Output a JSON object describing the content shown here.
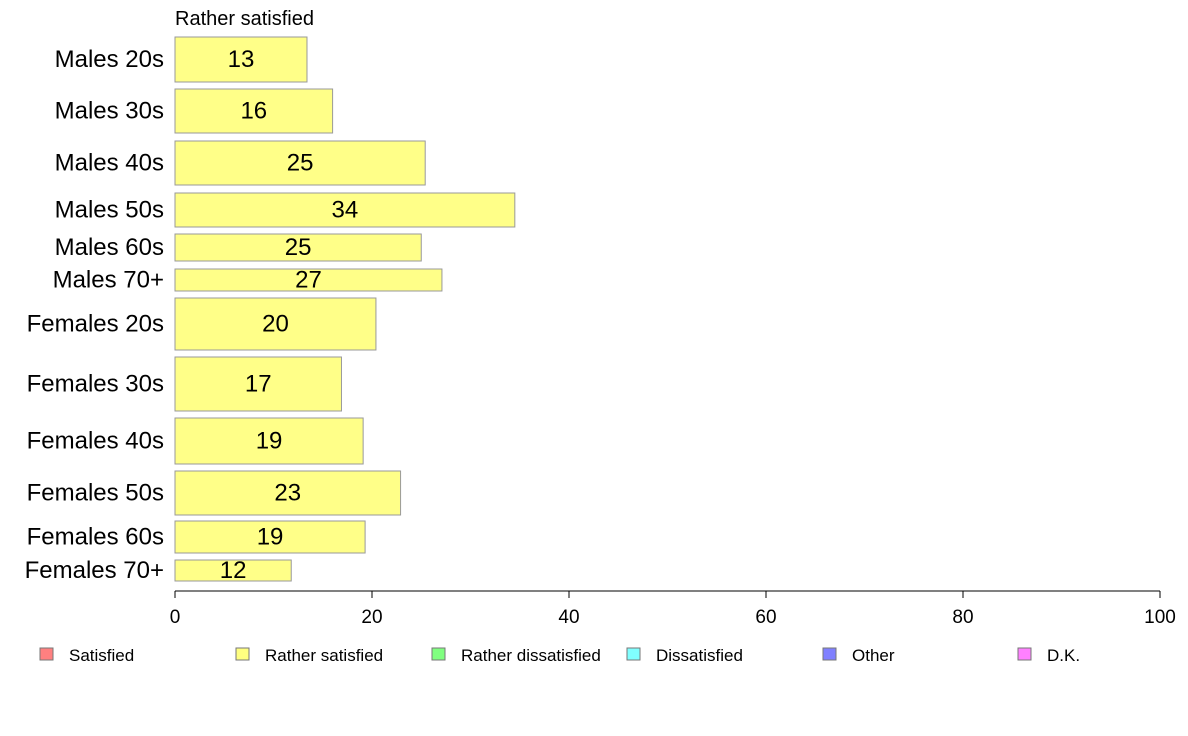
{
  "chart_data": {
    "type": "bar",
    "orientation": "horizontal",
    "title": "Rather satisfied",
    "categories": [
      "Males 20s",
      "Males 30s",
      "Males 40s",
      "Males 50s",
      "Males 60s",
      "Males 70+",
      "Females 20s",
      "Females 30s",
      "Females 40s",
      "Females 50s",
      "Females 60s",
      "Females 70+"
    ],
    "series": [
      {
        "name": "Rather satisfied",
        "values": [
          13.4,
          16,
          25.4,
          34.5,
          25,
          27.1,
          20.4,
          16.9,
          19.1,
          22.9,
          19.3,
          11.8
        ]
      }
    ],
    "data_labels": [
      "13",
      "16",
      "25",
      "34",
      "25",
      "27",
      "20",
      "17",
      "19",
      "23",
      "19",
      "12"
    ],
    "bar_color": "#ffff88",
    "bar_stroke": "#999999",
    "xlim": [
      0,
      100
    ],
    "xticks": [
      0,
      20,
      40,
      60,
      80,
      100
    ],
    "legend": {
      "placement": "bottom",
      "items": [
        {
          "label": "Satisfied",
          "color": "#ff8080"
        },
        {
          "label": "Rather satisfied",
          "color": "#ffff80"
        },
        {
          "label": "Rather dissatisfied",
          "color": "#80ff80"
        },
        {
          "label": "Dissatisfied",
          "color": "#80ffff"
        },
        {
          "label": "Other",
          "color": "#8080ff"
        },
        {
          "label": "D.K.",
          "color": "#ff80ff"
        }
      ]
    }
  }
}
